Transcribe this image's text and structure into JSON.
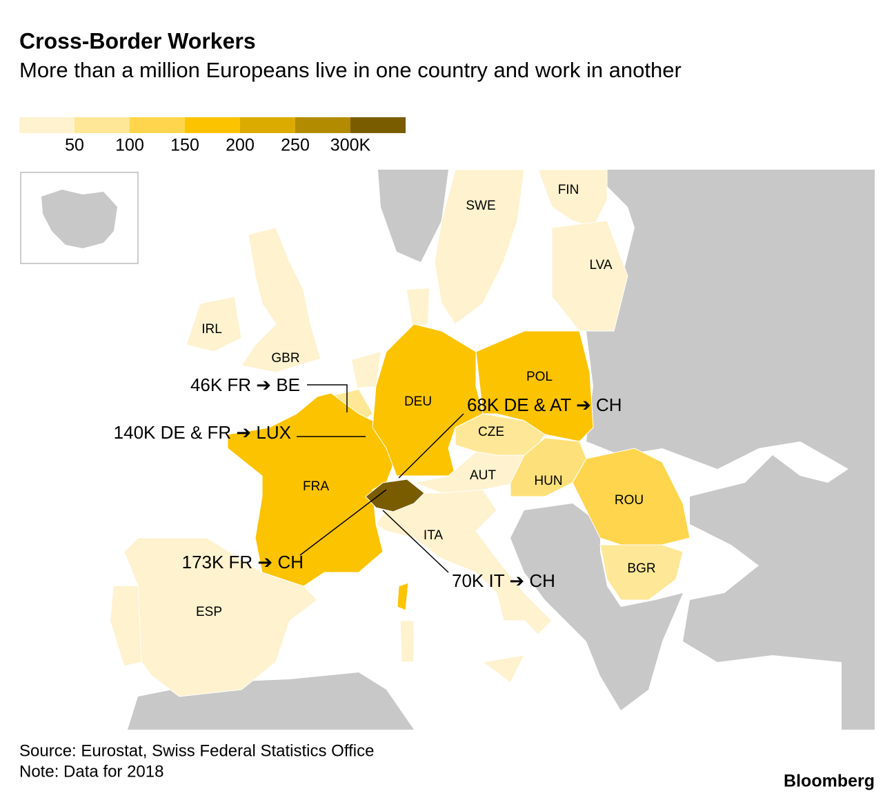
{
  "header": {
    "title": "Cross-Border Workers",
    "subtitle": "More than a million Europeans live in one country and work in another"
  },
  "legend": {
    "colors": [
      "#fef2cf",
      "#fee796",
      "#fed54d",
      "#fcc300",
      "#dcab00",
      "#b38b00",
      "#7a5c00"
    ],
    "labels": [
      "50",
      "100",
      "150",
      "200",
      "250",
      "300K"
    ]
  },
  "countries": [
    {
      "label": "FRA",
      "color": "#fcc300"
    },
    {
      "label": "DEU",
      "color": "#fcc300"
    },
    {
      "label": "POL",
      "color": "#fcc300"
    },
    {
      "label": "CZE",
      "color": "#fee796"
    },
    {
      "label": "AUT",
      "color": "#fef2cf"
    },
    {
      "label": "HUN",
      "color": "#fee07a"
    },
    {
      "label": "ROU",
      "color": "#fed54d"
    },
    {
      "label": "BGR",
      "color": "#fee796"
    },
    {
      "label": "ITA",
      "color": "#fef2cf"
    },
    {
      "label": "ESP",
      "color": "#fef2cf"
    },
    {
      "label": "GBR",
      "color": "#fef2cf"
    },
    {
      "label": "IRL",
      "color": "#fef2cf"
    },
    {
      "label": "SWE",
      "color": "#fef2cf"
    },
    {
      "label": "FIN",
      "color": "#fef2cf"
    },
    {
      "label": "LVA",
      "color": "#fef2cf"
    }
  ],
  "annotations": [
    "46K FR ➔ BE",
    "140K DE & FR ➔ LUX",
    "68K DE & AT ➔ CH",
    "173K FR ➔ CH",
    "70K IT ➔ CH"
  ],
  "footer": {
    "source": "Source: Eurostat, Swiss Federal Statistics Office",
    "note": "Note: Data for 2018",
    "brand": "Bloomberg"
  }
}
